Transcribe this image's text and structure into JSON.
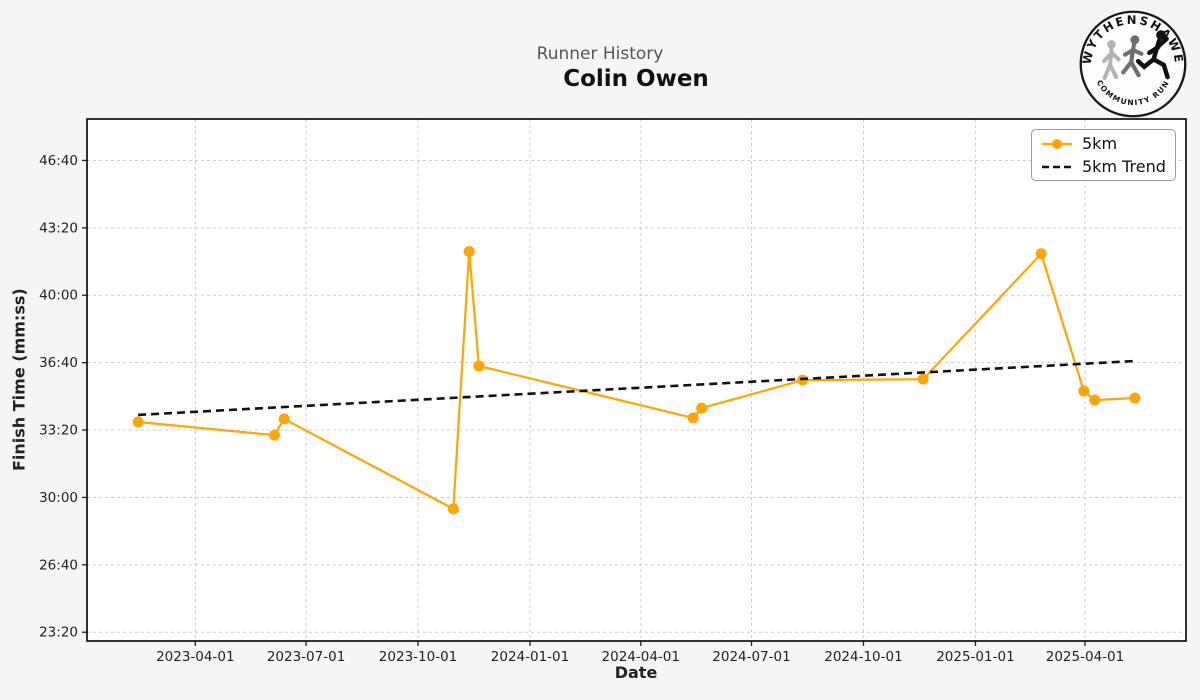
{
  "header": {
    "suptitle": "Runner History",
    "title": "Colin Owen"
  },
  "logo": {
    "top_text": "WYTHENSHAWE",
    "bottom_text": "COMMUNITY RUN"
  },
  "colors": {
    "series_5km": "#FFA500",
    "trend": "#111111",
    "figure_bg": "#f5f5f5",
    "plot_bg": "#ffffff",
    "grid": "#cccccc"
  },
  "chart_data": {
    "type": "line",
    "title": "Runner History",
    "subtitle": "Colin Owen",
    "xlabel": "Date",
    "ylabel": "Finish Time (mm:ss)",
    "grid": true,
    "legend_position": "upper right",
    "x_ticks": [
      "2023-04-01",
      "2023-07-01",
      "2023-10-01",
      "2024-01-01",
      "2024-04-01",
      "2024-07-01",
      "2024-10-01",
      "2025-01-01",
      "2025-04-01"
    ],
    "y_ticks": [
      "23:20",
      "26:40",
      "30:00",
      "33:20",
      "36:40",
      "40:00",
      "43:20",
      "46:40"
    ],
    "xlim": [
      "2023-01-02",
      "2025-06-23"
    ],
    "ylim": [
      "22:54",
      "48:43"
    ],
    "series": [
      {
        "name": "5km",
        "style": "solid",
        "marker": "circle",
        "color": "#FFA500",
        "points": [
          {
            "date": "2023-02-13",
            "time": "33:44"
          },
          {
            "date": "2023-06-05",
            "time": "33:05"
          },
          {
            "date": "2023-06-13",
            "time": "33:53"
          },
          {
            "date": "2023-10-30",
            "time": "29:26"
          },
          {
            "date": "2023-11-12",
            "time": "42:10"
          },
          {
            "date": "2023-11-20",
            "time": "36:30"
          },
          {
            "date": "2024-05-14",
            "time": "33:56"
          },
          {
            "date": "2024-05-21",
            "time": "34:25"
          },
          {
            "date": "2024-08-12",
            "time": "35:48"
          },
          {
            "date": "2024-11-19",
            "time": "35:51"
          },
          {
            "date": "2025-02-24",
            "time": "42:03"
          },
          {
            "date": "2025-03-31",
            "time": "35:16"
          },
          {
            "date": "2025-04-09",
            "time": "34:49"
          },
          {
            "date": "2025-05-12",
            "time": "34:55"
          }
        ]
      },
      {
        "name": "5km Trend",
        "style": "dashed",
        "marker": "none",
        "color": "#111111",
        "points": [
          {
            "date": "2023-02-13",
            "time": "34:05"
          },
          {
            "date": "2025-05-12",
            "time": "36:45"
          }
        ]
      }
    ]
  }
}
